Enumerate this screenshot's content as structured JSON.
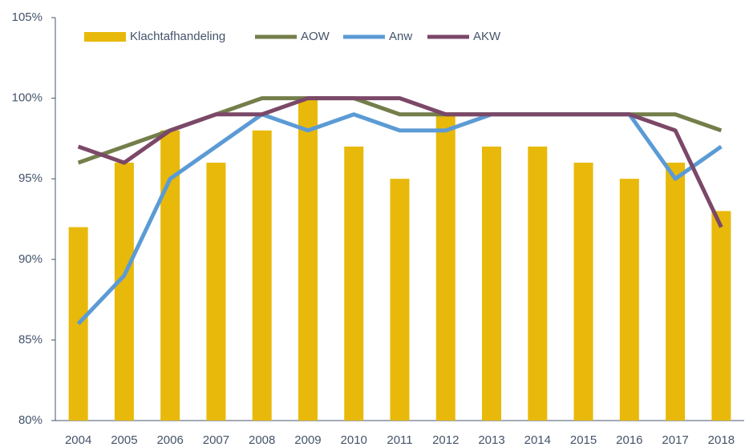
{
  "chart_data": {
    "type": "bar",
    "categories": [
      "2004",
      "2005",
      "2006",
      "2007",
      "2008",
      "2009",
      "2010",
      "2011",
      "2012",
      "2013",
      "2014",
      "2015",
      "2016",
      "2017",
      "2018"
    ],
    "series": [
      {
        "name": "Klachtafhandeling",
        "type": "bar",
        "color": "#e8b90a",
        "values": [
          92,
          96,
          98,
          96,
          98,
          100,
          97,
          95,
          99,
          97,
          97,
          96,
          95,
          96,
          93
        ]
      },
      {
        "name": "AOW",
        "type": "line",
        "color": "#737e4a",
        "values": [
          96,
          97,
          98,
          99,
          100,
          100,
          100,
          99,
          99,
          99,
          99,
          99,
          99,
          99,
          98
        ]
      },
      {
        "name": "Anw",
        "type": "line",
        "color": "#5b9bd5",
        "values": [
          86,
          89,
          95,
          97,
          99,
          98,
          99,
          98,
          98,
          99,
          99,
          99,
          99,
          95,
          97
        ]
      },
      {
        "name": "AKW",
        "type": "line",
        "color": "#7b4868",
        "values": [
          97,
          96,
          98,
          99,
          99,
          100,
          100,
          100,
          99,
          99,
          99,
          99,
          99,
          98,
          92
        ]
      }
    ],
    "ylim": [
      80,
      105
    ],
    "yticks": [
      {
        "value": 80,
        "label": "80%"
      },
      {
        "value": 85,
        "label": "85%"
      },
      {
        "value": 90,
        "label": "90%"
      },
      {
        "value": 95,
        "label": "95%"
      },
      {
        "value": 100,
        "label": "100%"
      },
      {
        "value": 105,
        "label": "105%"
      }
    ],
    "legend": "top"
  }
}
